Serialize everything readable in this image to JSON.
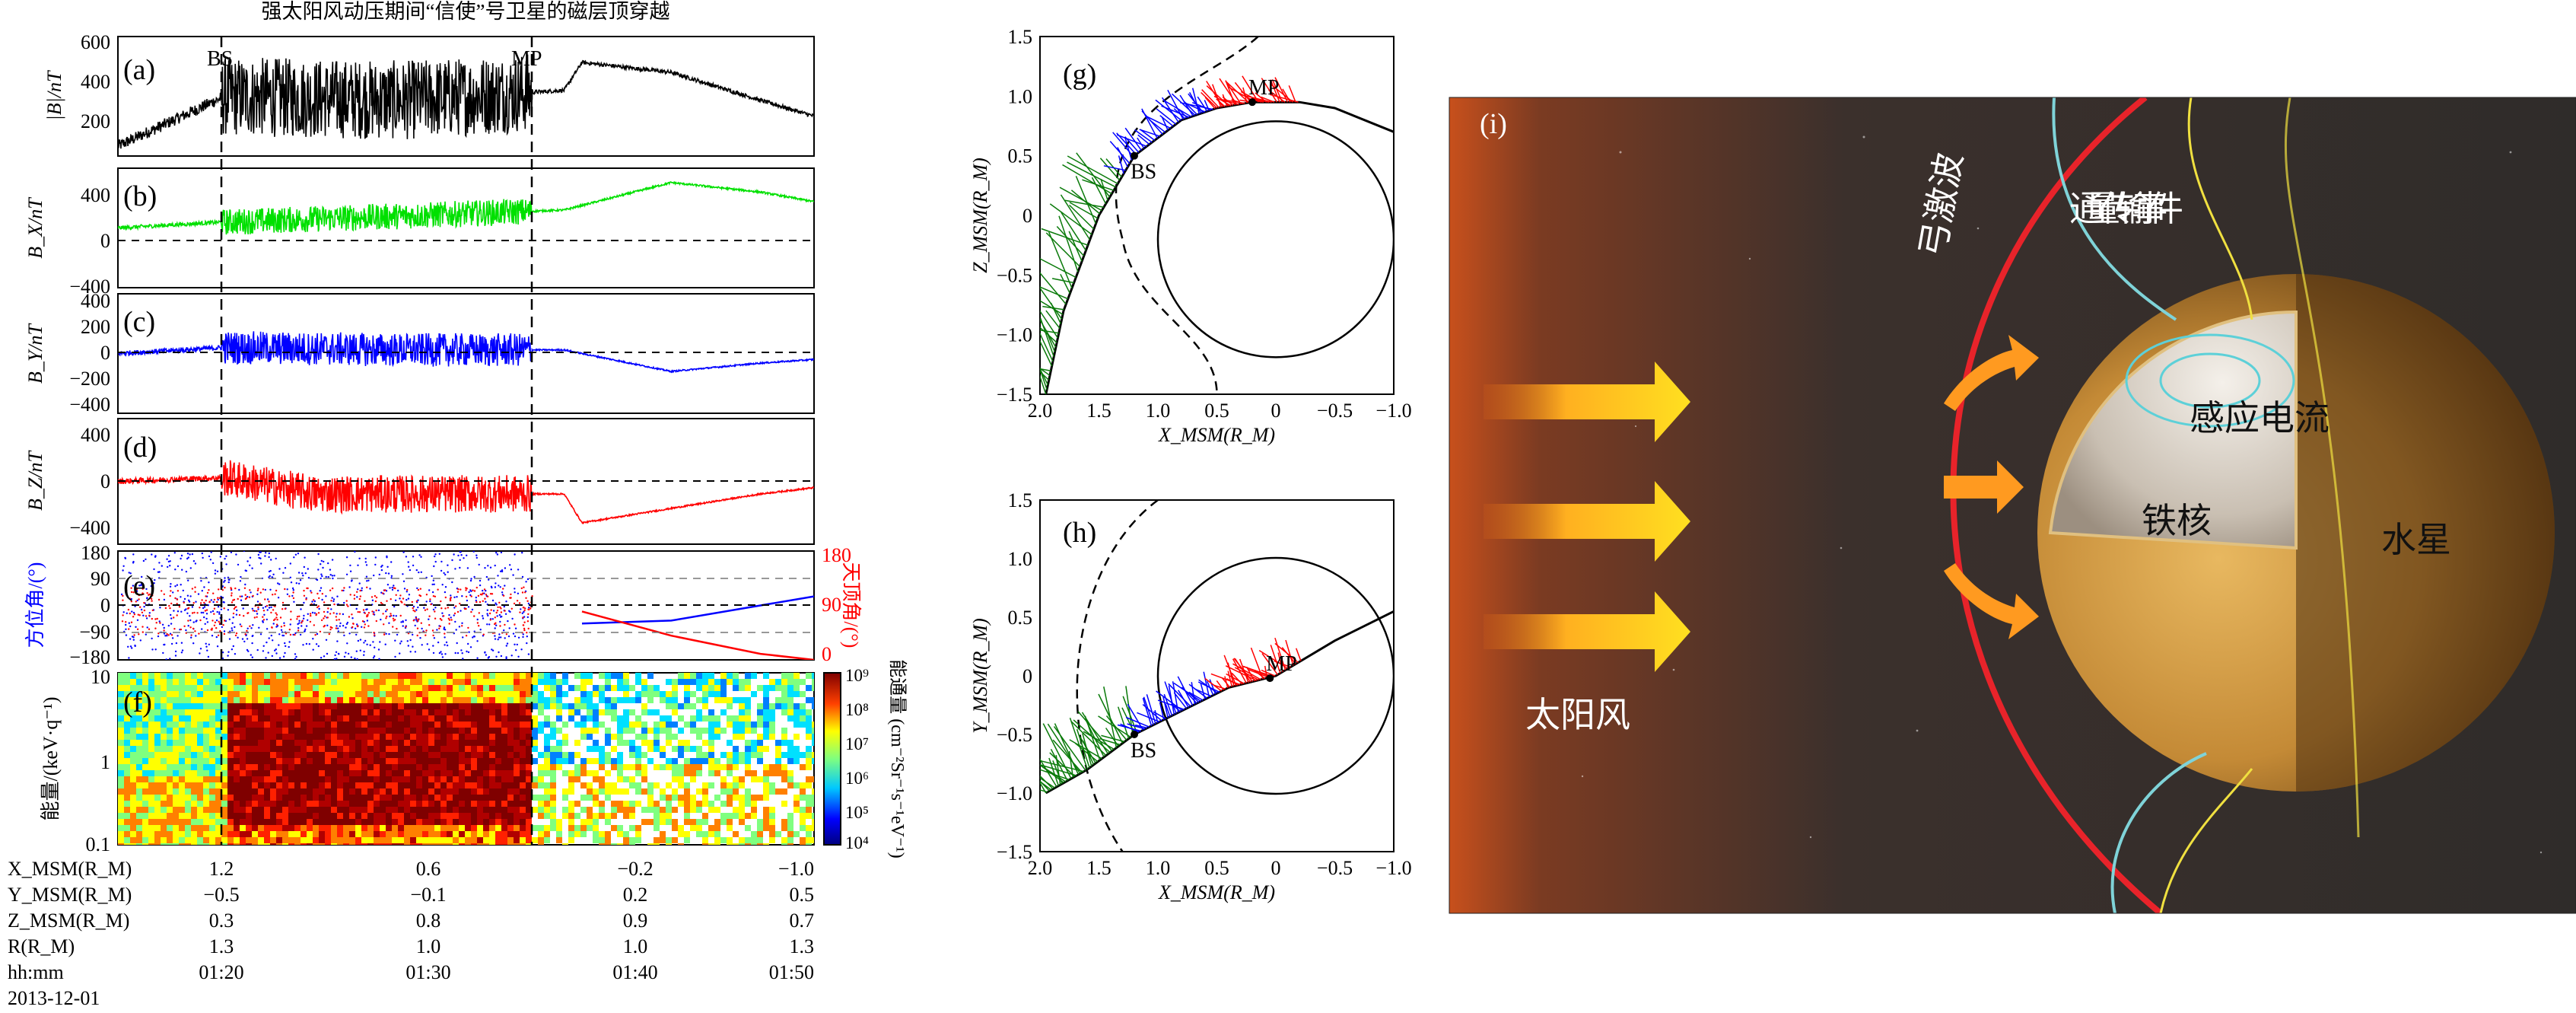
{
  "title": "强太阳风动压期间“信使”号卫星的磁层顶穿越",
  "markers": {
    "bs": "BS",
    "mp": "MP"
  },
  "colors": {
    "black": "#000000",
    "green": "#00e000",
    "blue": "#0000ff",
    "red": "#ff0000",
    "sheath_green": "#0a7a0a",
    "panel_bg": "#3a3330",
    "bow_shock": "#e8232a",
    "field_line": "#7fd3d8",
    "field_line_yellow": "#f0e040"
  },
  "time_axis": {
    "rows": [
      {
        "label": "X_MSM(R_M)",
        "values": [
          "1.2",
          "0.6",
          "−0.2",
          "−1.0"
        ]
      },
      {
        "label": "Y_MSM(R_M)",
        "values": [
          "−0.5",
          "−0.1",
          "0.2",
          "0.5"
        ]
      },
      {
        "label": "Z_MSM(R_M)",
        "values": [
          "0.3",
          "0.8",
          "0.9",
          "0.7"
        ]
      },
      {
        "label": "R(R_M)",
        "values": [
          "1.3",
          "1.0",
          "1.0",
          "1.3"
        ]
      },
      {
        "label": "hh:mm",
        "values": [
          "01:20",
          "01:30",
          "01:40",
          "01:50"
        ]
      }
    ],
    "date": "2013-12-01"
  },
  "chart_data": [
    {
      "panel": "(a)",
      "type": "line",
      "ylabel": "|B|/nT",
      "ylim": [
        0,
        600
      ],
      "yticks": [
        "200",
        "400",
        "600"
      ],
      "color": "#000000",
      "x": [
        "01:14",
        "01:20",
        "01:30",
        "01:39",
        "01:40",
        "01:45",
        "01:50",
        "01:53"
      ],
      "values": [
        50,
        300,
        280,
        330,
        470,
        420,
        280,
        200
      ]
    },
    {
      "panel": "(b)",
      "type": "line",
      "ylabel": "B_X/nT",
      "ylim": [
        -500,
        500
      ],
      "yticks": [
        "400",
        "0",
        "−400"
      ],
      "color": "#00e000",
      "x": [
        "01:14",
        "01:20",
        "01:30",
        "01:39",
        "01:45",
        "01:50",
        "01:53"
      ],
      "values": [
        0,
        50,
        100,
        150,
        380,
        300,
        220
      ]
    },
    {
      "panel": "(c)",
      "type": "line",
      "ylabel": "B_Y/nT",
      "ylim": [
        -500,
        500
      ],
      "yticks": [
        "400",
        "200",
        "0",
        "−200",
        "−400"
      ],
      "color": "#0000ff",
      "x": [
        "01:14",
        "01:20",
        "01:30",
        "01:39",
        "01:45",
        "01:50",
        "01:53"
      ],
      "values": [
        0,
        50,
        30,
        30,
        -150,
        -80,
        -50
      ]
    },
    {
      "panel": "(d)",
      "type": "line",
      "ylabel": "B_Z/nT",
      "ylim": [
        -500,
        500
      ],
      "yticks": [
        "400",
        "0",
        "−400"
      ],
      "color": "#ff0000",
      "x": [
        "01:14",
        "01:20",
        "01:25",
        "01:39",
        "01:40",
        "01:50",
        "01:53"
      ],
      "values": [
        0,
        30,
        -100,
        -100,
        -330,
        -100,
        -50
      ]
    },
    {
      "panel": "(e)",
      "type": "scatter",
      "ylabel_left": "方位角/(°)",
      "ylabel_right": "天顶角/(°)",
      "yticks_left": [
        "180",
        "90",
        "0",
        "−90",
        "−180"
      ],
      "yticks_right": [
        "180",
        "90",
        "0"
      ],
      "series": [
        {
          "name": "方位角/(°)",
          "color": "#0000ff",
          "x": [
            "01:40",
            "01:45",
            "01:50",
            "01:53"
          ],
          "values": [
            -60,
            -50,
            0,
            30
          ]
        },
        {
          "name": "天顶角/(°)",
          "color": "#ff0000",
          "x": [
            "01:40",
            "01:45",
            "01:50",
            "01:53"
          ],
          "values": [
            80,
            40,
            10,
            0
          ]
        }
      ]
    },
    {
      "panel": "(f)",
      "type": "heatmap",
      "ylabel": "能量/(keV·q⁻¹)",
      "yticks": [
        "10",
        "1",
        "0.1"
      ],
      "colorbar_label": "能通量 (cm⁻²Sr⁻¹s⁻¹eV⁻¹)",
      "colorbar_ticks": [
        "10⁹",
        "10⁸",
        "10⁷",
        "10⁶",
        "10⁵",
        "10⁴"
      ]
    },
    {
      "panel": "(g)",
      "type": "line",
      "xlabel": "X_MSM(R_M)",
      "ylabel": "Z_MSM(R_M)",
      "xlim": [
        2.0,
        -1.0
      ],
      "ylim": [
        -1.5,
        1.5
      ],
      "xticks": [
        "2.0",
        "1.5",
        "1.0",
        "0.5",
        "0",
        "−0.5",
        "−1.0"
      ],
      "yticks": [
        "1.5",
        "1.0",
        "0.5",
        "0",
        "−0.5",
        "−1.0",
        "−1.5"
      ],
      "annotations": [
        "MP",
        "BS"
      ],
      "trajectory": {
        "x": [
          1.95,
          1.8,
          1.5,
          1.2,
          0.8,
          0.5,
          0.2,
          -0.2,
          -0.5,
          -1.0
        ],
        "y": [
          -1.5,
          -0.8,
          0.0,
          0.5,
          0.8,
          0.9,
          0.95,
          0.95,
          0.9,
          0.7
        ]
      }
    },
    {
      "panel": "(h)",
      "type": "line",
      "xlabel": "X_MSM(R_M)",
      "ylabel": "Y_MSM(R_M)",
      "xlim": [
        2.0,
        -1.0
      ],
      "ylim": [
        -1.5,
        1.5
      ],
      "xticks": [
        "2.0",
        "1.5",
        "1.0",
        "0.5",
        "0",
        "−0.5",
        "−1.0"
      ],
      "yticks": [
        "1.5",
        "1.0",
        "0.5",
        "0",
        "−0.5",
        "−1.0",
        "−1.5"
      ],
      "annotations": [
        "MP",
        "BS"
      ],
      "trajectory": {
        "x": [
          1.95,
          1.6,
          1.2,
          0.8,
          0.4,
          0.0,
          -0.5,
          -1.0
        ],
        "y": [
          -1.0,
          -0.8,
          -0.5,
          -0.3,
          -0.1,
          0.0,
          0.3,
          0.55
        ]
      }
    }
  ],
  "illustration": {
    "panel": "(i)",
    "labels": {
      "solar_wind": "太阳风",
      "bow_shock": "弓激波",
      "fte": "通量传输事件",
      "induced_current": "感应电流",
      "iron_core": "铁核",
      "mercury": "水星"
    }
  }
}
